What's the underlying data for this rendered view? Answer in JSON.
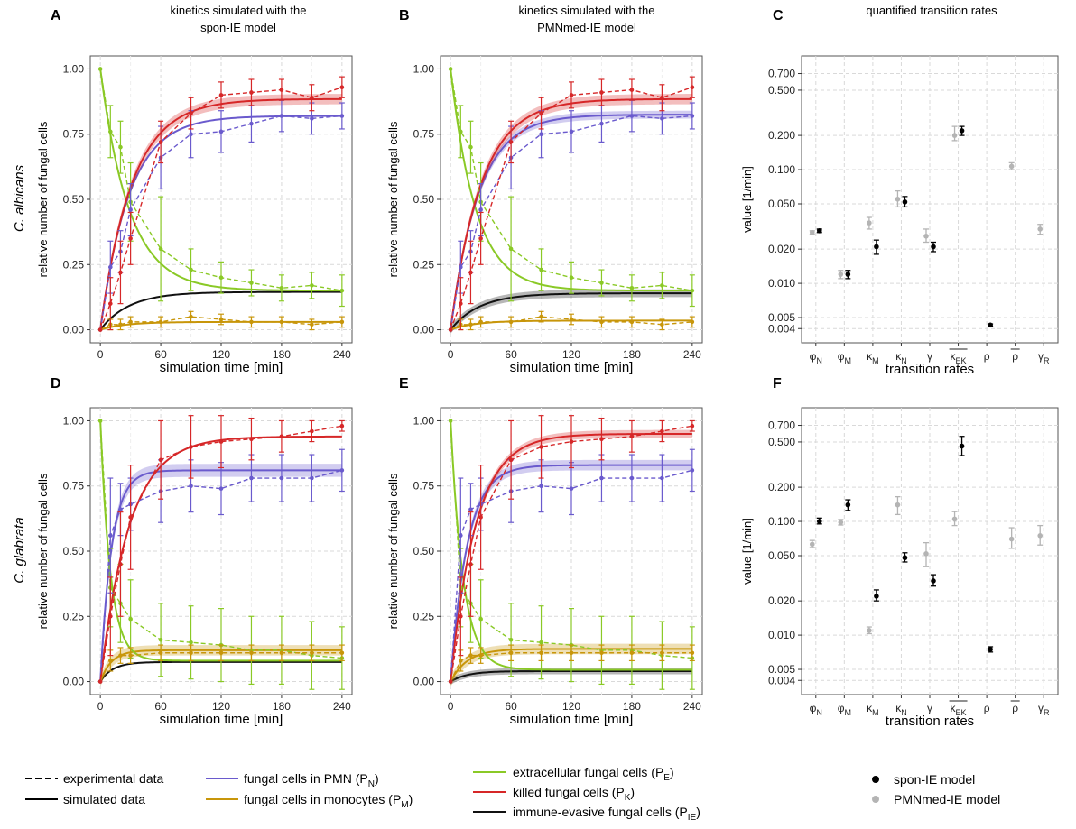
{
  "column_titles": [
    "kinetics simulated with the\nspon-IE model",
    "kinetics simulated with the\nPMNmed-IE model",
    "quantified transition rates"
  ],
  "row_labels": [
    "C. albicans",
    "C. glabrata"
  ],
  "panel_letters": [
    "A",
    "B",
    "C",
    "D",
    "E",
    "F"
  ],
  "axis_text": {
    "kinetics_xlabel": "simulation time [min]",
    "kinetics_ylabel": "relative number of fungal cells",
    "rates_xlabel": "transition rates",
    "rates_ylabel": "value [1/min]"
  },
  "legend": {
    "experimental": "experimental data",
    "simulated": "simulated data",
    "series_labels": {
      "PN": "fungal cells in PMN (P_N)",
      "PM": "fungal cells in monocytes (P_M)",
      "PE": "extracellular fungal cells (P_E)",
      "PK": "killed fungal cells (P_K)",
      "PIE": "immune-evasive fungal cells (P_IE)"
    },
    "spon": "spon-IE model",
    "pmnmed": "PMNmed-IE model"
  },
  "colors": {
    "PN": "#6a5acd",
    "PM": "#c8960a",
    "PE": "#8ac926",
    "PK": "#d62728",
    "PIE": "#111111",
    "spon": "#000000",
    "pmnmed": "#b4b4b4",
    "panel_bg": "#ffffff",
    "grid": "#d9d9d9"
  },
  "chart_data": [
    {
      "id": "A",
      "type": "line",
      "organism": "C. albicans",
      "model": "spon-IE",
      "xlim": [
        -10,
        250
      ],
      "ylim": [
        -0.05,
        1.05
      ],
      "xticks": [
        0,
        60,
        120,
        180,
        240
      ],
      "yticks": [
        0.0,
        0.25,
        0.5,
        0.75,
        1.0
      ],
      "ytick_labels": [
        "0.00",
        "0.25",
        "0.50",
        "0.75",
        "1.00"
      ],
      "time": [
        0,
        10,
        20,
        30,
        60,
        90,
        120,
        150,
        180,
        210,
        240
      ],
      "experimental": {
        "PN": {
          "y": [
            0,
            0.24,
            0.3,
            0.46,
            0.66,
            0.75,
            0.76,
            0.79,
            0.82,
            0.81,
            0.82
          ],
          "err": [
            0,
            0.1,
            0.08,
            0.1,
            0.12,
            0.09,
            0.08,
            0.07,
            0.06,
            0.06,
            0.05
          ]
        },
        "PM": {
          "y": [
            0,
            0.02,
            0.02,
            0.03,
            0.03,
            0.05,
            0.04,
            0.03,
            0.03,
            0.02,
            0.03
          ],
          "err": [
            0,
            0.02,
            0.02,
            0.02,
            0.02,
            0.02,
            0.02,
            0.02,
            0.02,
            0.02,
            0.02
          ]
        },
        "PE": {
          "y": [
            1.0,
            0.76,
            0.7,
            0.49,
            0.31,
            0.23,
            0.2,
            0.18,
            0.16,
            0.17,
            0.15
          ],
          "err": [
            0,
            0.1,
            0.1,
            0.15,
            0.2,
            0.08,
            0.06,
            0.05,
            0.05,
            0.05,
            0.06
          ]
        },
        "PK": {
          "y": [
            0,
            0.1,
            0.22,
            0.35,
            0.72,
            0.83,
            0.9,
            0.91,
            0.92,
            0.89,
            0.93
          ],
          "err": [
            0,
            0.1,
            0.12,
            0.1,
            0.08,
            0.06,
            0.05,
            0.05,
            0.04,
            0.05,
            0.04
          ]
        }
      },
      "simulated": {
        "PN": {
          "plateau": 0.82,
          "k": 0.035,
          "band": 0.0
        },
        "PM": {
          "plateau": 0.03,
          "k": 0.04,
          "band": 0.0
        },
        "PE": {
          "plateau": 0.15,
          "k": 0.035,
          "band": 0.0
        },
        "PK": {
          "plateau": 0.885,
          "k": 0.032,
          "band": 0.02
        },
        "PIE": {
          "plateau": 0.145,
          "k": 0.035,
          "band": 0.0
        }
      }
    },
    {
      "id": "B",
      "type": "line",
      "organism": "C. albicans",
      "model": "PMNmed-IE",
      "xlim": [
        -10,
        250
      ],
      "ylim": [
        -0.05,
        1.05
      ],
      "xticks": [
        0,
        60,
        120,
        180,
        240
      ],
      "yticks": [
        0.0,
        0.25,
        0.5,
        0.75,
        1.0
      ],
      "ytick_labels": [
        "0.00",
        "0.25",
        "0.50",
        "0.75",
        "1.00"
      ],
      "time": [
        0,
        10,
        20,
        30,
        60,
        90,
        120,
        150,
        180,
        210,
        240
      ],
      "experimental": {
        "PN": {
          "y": [
            0,
            0.24,
            0.3,
            0.46,
            0.66,
            0.75,
            0.76,
            0.79,
            0.82,
            0.81,
            0.82
          ],
          "err": [
            0,
            0.1,
            0.08,
            0.1,
            0.12,
            0.09,
            0.08,
            0.07,
            0.06,
            0.06,
            0.05
          ]
        },
        "PM": {
          "y": [
            0,
            0.02,
            0.02,
            0.03,
            0.03,
            0.05,
            0.04,
            0.03,
            0.03,
            0.02,
            0.03
          ],
          "err": [
            0,
            0.02,
            0.02,
            0.02,
            0.02,
            0.02,
            0.02,
            0.02,
            0.02,
            0.02,
            0.02
          ]
        },
        "PE": {
          "y": [
            1.0,
            0.76,
            0.7,
            0.49,
            0.31,
            0.23,
            0.2,
            0.18,
            0.16,
            0.17,
            0.15
          ],
          "err": [
            0,
            0.1,
            0.1,
            0.15,
            0.2,
            0.08,
            0.06,
            0.05,
            0.05,
            0.05,
            0.06
          ]
        },
        "PK": {
          "y": [
            0,
            0.1,
            0.22,
            0.35,
            0.72,
            0.83,
            0.9,
            0.91,
            0.92,
            0.89,
            0.93
          ],
          "err": [
            0,
            0.1,
            0.12,
            0.1,
            0.08,
            0.06,
            0.05,
            0.05,
            0.04,
            0.05,
            0.04
          ]
        }
      },
      "simulated": {
        "PN": {
          "plateau": 0.825,
          "k": 0.036,
          "band": 0.015
        },
        "PM": {
          "plateau": 0.035,
          "k": 0.04,
          "band": 0.0
        },
        "PE": {
          "plateau": 0.15,
          "k": 0.04,
          "band": 0.0
        },
        "PK": {
          "plateau": 0.885,
          "k": 0.033,
          "band": 0.02
        },
        "PIE": {
          "plateau": 0.14,
          "k": 0.035,
          "band": 0.015
        }
      }
    },
    {
      "id": "D",
      "type": "line",
      "organism": "C. glabrata",
      "model": "spon-IE",
      "xlim": [
        -10,
        250
      ],
      "ylim": [
        -0.05,
        1.05
      ],
      "xticks": [
        0,
        60,
        120,
        180,
        240
      ],
      "yticks": [
        0.0,
        0.25,
        0.5,
        0.75,
        1.0
      ],
      "ytick_labels": [
        "0.00",
        "0.25",
        "0.50",
        "0.75",
        "1.00"
      ],
      "time": [
        0,
        10,
        20,
        30,
        60,
        90,
        120,
        150,
        180,
        210,
        240
      ],
      "experimental": {
        "PN": {
          "y": [
            0,
            0.56,
            0.66,
            0.68,
            0.73,
            0.75,
            0.74,
            0.78,
            0.78,
            0.78,
            0.81
          ],
          "err": [
            0,
            0.22,
            0.1,
            0.1,
            0.12,
            0.1,
            0.1,
            0.09,
            0.09,
            0.09,
            0.08
          ]
        },
        "PM": {
          "y": [
            0,
            0.08,
            0.1,
            0.1,
            0.11,
            0.11,
            0.11,
            0.11,
            0.11,
            0.11,
            0.11
          ],
          "err": [
            0,
            0.04,
            0.03,
            0.03,
            0.03,
            0.03,
            0.03,
            0.03,
            0.03,
            0.03,
            0.03
          ]
        },
        "PE": {
          "y": [
            1.0,
            0.36,
            0.3,
            0.24,
            0.16,
            0.15,
            0.14,
            0.12,
            0.12,
            0.1,
            0.09
          ],
          "err": [
            0,
            0.15,
            0.15,
            0.15,
            0.14,
            0.14,
            0.14,
            0.13,
            0.13,
            0.13,
            0.12
          ]
        },
        "PK": {
          "y": [
            0,
            0.25,
            0.45,
            0.63,
            0.85,
            0.9,
            0.92,
            0.93,
            0.94,
            0.96,
            0.98
          ],
          "err": [
            0,
            0.15,
            0.2,
            0.2,
            0.15,
            0.12,
            0.1,
            0.08,
            0.06,
            0.04,
            0.02
          ]
        }
      },
      "simulated": {
        "PN": {
          "plateau": 0.81,
          "k": 0.09,
          "band": 0.025
        },
        "PM": {
          "plateau": 0.12,
          "k": 0.09,
          "band": 0.02
        },
        "PE": {
          "plateau": 0.08,
          "k": 0.1,
          "band": 0.0
        },
        "PK": {
          "plateau": 0.94,
          "k": 0.035,
          "band": 0.0
        },
        "PIE": {
          "plateau": 0.075,
          "k": 0.08,
          "band": 0.0
        }
      }
    },
    {
      "id": "E",
      "type": "line",
      "organism": "C. glabrata",
      "model": "PMNmed-IE",
      "xlim": [
        -10,
        250
      ],
      "ylim": [
        -0.05,
        1.05
      ],
      "xticks": [
        0,
        60,
        120,
        180,
        240
      ],
      "yticks": [
        0.0,
        0.25,
        0.5,
        0.75,
        1.0
      ],
      "ytick_labels": [
        "0.00",
        "0.25",
        "0.50",
        "0.75",
        "1.00"
      ],
      "time": [
        0,
        10,
        20,
        30,
        60,
        90,
        120,
        150,
        180,
        210,
        240
      ],
      "experimental": {
        "PN": {
          "y": [
            0,
            0.56,
            0.66,
            0.68,
            0.73,
            0.75,
            0.74,
            0.78,
            0.78,
            0.78,
            0.81
          ],
          "err": [
            0,
            0.22,
            0.1,
            0.1,
            0.12,
            0.1,
            0.1,
            0.09,
            0.09,
            0.09,
            0.08
          ]
        },
        "PM": {
          "y": [
            0,
            0.08,
            0.1,
            0.1,
            0.11,
            0.11,
            0.11,
            0.11,
            0.11,
            0.11,
            0.11
          ],
          "err": [
            0,
            0.04,
            0.03,
            0.03,
            0.03,
            0.03,
            0.03,
            0.03,
            0.03,
            0.03,
            0.03
          ]
        },
        "PE": {
          "y": [
            1.0,
            0.36,
            0.3,
            0.24,
            0.16,
            0.15,
            0.14,
            0.12,
            0.12,
            0.1,
            0.09
          ],
          "err": [
            0,
            0.15,
            0.15,
            0.15,
            0.14,
            0.14,
            0.14,
            0.13,
            0.13,
            0.13,
            0.12
          ]
        },
        "PK": {
          "y": [
            0,
            0.25,
            0.45,
            0.63,
            0.85,
            0.9,
            0.92,
            0.93,
            0.94,
            0.96,
            0.98
          ],
          "err": [
            0,
            0.15,
            0.2,
            0.2,
            0.15,
            0.12,
            0.1,
            0.08,
            0.06,
            0.04,
            0.02
          ]
        }
      },
      "simulated": {
        "PN": {
          "plateau": 0.83,
          "k": 0.06,
          "band": 0.02
        },
        "PM": {
          "plateau": 0.125,
          "k": 0.06,
          "band": 0.02
        },
        "PE": {
          "plateau": 0.045,
          "k": 0.08,
          "band": 0.0
        },
        "PK": {
          "plateau": 0.95,
          "k": 0.04,
          "band": 0.015
        },
        "PIE": {
          "plateau": 0.04,
          "k": 0.06,
          "band": 0.012
        }
      }
    },
    {
      "id": "C",
      "type": "scatter",
      "scale": "log",
      "organism": "C. albicans",
      "ylim": [
        0.003,
        1.0
      ],
      "yticks": [
        0.004,
        0.005,
        0.01,
        0.02,
        0.05,
        0.1,
        0.2,
        0.5,
        0.7
      ],
      "ytick_labels": [
        "0.004",
        "0.005",
        "0.010",
        "0.020",
        "0.050",
        "0.100",
        "0.200",
        "0.500",
        "0.700"
      ],
      "categories": [
        "φN",
        "φM",
        "κM",
        "κN",
        "γ",
        "κEK",
        "ρ",
        "ρ",
        "γR"
      ],
      "category_names": [
        "phi_N",
        "phi_M",
        "kappa_M",
        "kappa_N",
        "gamma",
        "kappa_EK_bar",
        "rho",
        "rho_bar",
        "gamma_R"
      ],
      "spon": [
        {
          "v": 0.029,
          "lo": 0.028,
          "hi": 0.03
        },
        {
          "v": 0.012,
          "lo": 0.011,
          "hi": 0.013
        },
        {
          "v": 0.021,
          "lo": 0.018,
          "hi": 0.024
        },
        {
          "v": 0.052,
          "lo": 0.047,
          "hi": 0.058
        },
        {
          "v": 0.021,
          "lo": 0.019,
          "hi": 0.023
        },
        {
          "v": 0.22,
          "lo": 0.2,
          "hi": 0.24
        },
        {
          "v": 0.0043,
          "lo": 0.0042,
          "hi": 0.0044
        },
        null,
        null
      ],
      "pmnmed": [
        {
          "v": 0.028,
          "lo": 0.027,
          "hi": 0.029
        },
        {
          "v": 0.012,
          "lo": 0.011,
          "hi": 0.013
        },
        {
          "v": 0.034,
          "lo": 0.03,
          "hi": 0.038
        },
        {
          "v": 0.055,
          "lo": 0.047,
          "hi": 0.065
        },
        {
          "v": 0.026,
          "lo": 0.023,
          "hi": 0.03
        },
        {
          "v": 0.2,
          "lo": 0.18,
          "hi": 0.24
        },
        null,
        {
          "v": 0.107,
          "lo": 0.1,
          "hi": 0.115
        },
        {
          "v": 0.03,
          "lo": 0.027,
          "hi": 0.033
        }
      ]
    },
    {
      "id": "F",
      "type": "scatter",
      "scale": "log",
      "organism": "C. glabrata",
      "ylim": [
        0.003,
        1.0
      ],
      "yticks": [
        0.004,
        0.005,
        0.01,
        0.02,
        0.05,
        0.1,
        0.2,
        0.5,
        0.7
      ],
      "ytick_labels": [
        "0.004",
        "0.005",
        "0.010",
        "0.020",
        "0.050",
        "0.100",
        "0.200",
        "0.500",
        "0.700"
      ],
      "categories": [
        "φN",
        "φM",
        "κM",
        "κN",
        "γ",
        "κEK",
        "ρ",
        "ρ",
        "γR"
      ],
      "category_names": [
        "phi_N",
        "phi_M",
        "kappa_M",
        "kappa_N",
        "gamma",
        "kappa_EK_bar",
        "rho",
        "rho_bar",
        "gamma_R"
      ],
      "spon": [
        {
          "v": 0.1,
          "lo": 0.095,
          "hi": 0.107
        },
        {
          "v": 0.14,
          "lo": 0.125,
          "hi": 0.155
        },
        {
          "v": 0.022,
          "lo": 0.02,
          "hi": 0.025
        },
        {
          "v": 0.048,
          "lo": 0.044,
          "hi": 0.053
        },
        {
          "v": 0.03,
          "lo": 0.027,
          "hi": 0.034
        },
        {
          "v": 0.46,
          "lo": 0.38,
          "hi": 0.56
        },
        {
          "v": 0.0075,
          "lo": 0.0071,
          "hi": 0.0079
        },
        null,
        null
      ],
      "pmnmed": [
        {
          "v": 0.063,
          "lo": 0.059,
          "hi": 0.068
        },
        {
          "v": 0.098,
          "lo": 0.093,
          "hi": 0.104
        },
        {
          "v": 0.011,
          "lo": 0.0103,
          "hi": 0.0118
        },
        {
          "v": 0.14,
          "lo": 0.115,
          "hi": 0.165
        },
        {
          "v": 0.052,
          "lo": 0.04,
          "hi": 0.065
        },
        {
          "v": 0.105,
          "lo": 0.092,
          "hi": 0.122
        },
        null,
        {
          "v": 0.07,
          "lo": 0.058,
          "hi": 0.088
        },
        {
          "v": 0.075,
          "lo": 0.062,
          "hi": 0.092
        }
      ]
    }
  ]
}
